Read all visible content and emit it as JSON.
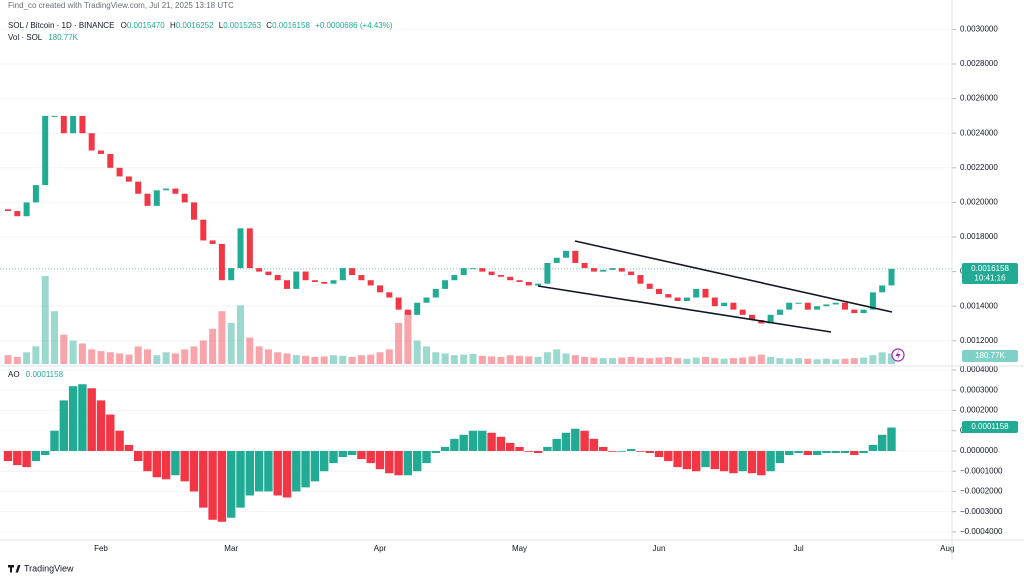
{
  "header": {
    "credit": "Find_co created with TradingView.com, Jul 21, 2025 13:18 UTC",
    "symbol": "SOL / Bitcoin · 1D · BINANCE",
    "ohlc": [
      {
        "label": "O",
        "value": "0.0015470"
      },
      {
        "label": "H",
        "value": "0.0016252"
      },
      {
        "label": "L",
        "value": "0.0015263"
      },
      {
        "label": "C",
        "value": "0.0016158"
      }
    ],
    "change": "+0.0000686 (+4.43%)",
    "vol_name": "Vol · SOL",
    "vol_value": "180.77K"
  },
  "footer": "TradingView",
  "chart_data": [
    {
      "type": "candlestick",
      "up_color": "#22ab94",
      "down_color": "#f23645",
      "categories": [
        null,
        null,
        null,
        null,
        null,
        null,
        null,
        null,
        null,
        null,
        "Feb",
        null,
        null,
        null,
        null,
        null,
        null,
        null,
        null,
        null,
        null,
        null,
        null,
        null,
        "Mar",
        null,
        null,
        null,
        null,
        null,
        null,
        null,
        null,
        null,
        null,
        null,
        null,
        null,
        null,
        null,
        "Apr",
        null,
        null,
        null,
        null,
        null,
        null,
        null,
        null,
        null,
        null,
        null,
        null,
        null,
        null,
        "May",
        null,
        null,
        null,
        null,
        null,
        null,
        null,
        null,
        null,
        null,
        null,
        null,
        null,
        null,
        "Jun",
        null,
        null,
        null,
        null,
        null,
        null,
        null,
        null,
        null,
        null,
        null,
        null,
        null,
        null,
        "Jul",
        null,
        null,
        null,
        null,
        null,
        null,
        null,
        null,
        null,
        null
      ],
      "future_categories": [
        null,
        null,
        null,
        null,
        null,
        "Aug"
      ],
      "open": 0.00196,
      "close": [
        0.00195,
        0.00192,
        0.002,
        0.0021,
        0.0025,
        0.0025,
        0.0024,
        0.0025,
        0.0024,
        0.0023,
        0.00228,
        0.0022,
        0.00215,
        0.00212,
        0.00205,
        0.00198,
        0.00207,
        0.00208,
        0.00205,
        0.002,
        0.0019,
        0.00178,
        0.00176,
        0.00155,
        0.00162,
        0.00185,
        0.00162,
        0.0016,
        0.00158,
        0.00155,
        0.0015,
        0.0016,
        0.00155,
        0.00154,
        0.00153,
        0.00155,
        0.00162,
        0.00158,
        0.00155,
        0.00152,
        0.00148,
        0.00145,
        0.00138,
        0.00135,
        0.00142,
        0.00145,
        0.0015,
        0.00155,
        0.00158,
        0.00162,
        0.00162,
        0.0016,
        0.00158,
        0.00157,
        0.00155,
        0.00154,
        0.00152,
        0.00153,
        0.00165,
        0.00168,
        0.00172,
        0.00165,
        0.00162,
        0.0016,
        0.00161,
        0.00162,
        0.0016,
        0.00158,
        0.00153,
        0.0015,
        0.00147,
        0.00145,
        0.00143,
        0.00145,
        0.0015,
        0.00145,
        0.0014,
        0.00142,
        0.00138,
        0.00135,
        0.00132,
        0.0013,
        0.00135,
        0.00138,
        0.00142,
        0.00142,
        0.00138,
        0.0014,
        0.00141,
        0.00142,
        0.00138,
        0.00136,
        0.00138,
        0.00148,
        0.00152,
        0.0016158
      ],
      "volume": [
        150000,
        120000,
        200000,
        300000,
        1500000,
        900000,
        500000,
        400000,
        350000,
        250000,
        220000,
        200000,
        180000,
        160000,
        300000,
        250000,
        150000,
        200000,
        180000,
        250000,
        300000,
        400000,
        600000,
        900000,
        700000,
        1000000,
        450000,
        300000,
        250000,
        200000,
        180000,
        150000,
        140000,
        120000,
        130000,
        150000,
        140000,
        120000,
        150000,
        160000,
        200000,
        250000,
        700000,
        900000,
        400000,
        300000,
        200000,
        180000,
        150000,
        160000,
        170000,
        140000,
        130000,
        120000,
        150000,
        140000,
        130000,
        120000,
        200000,
        250000,
        180000,
        150000,
        120000,
        110000,
        100000,
        100000,
        110000,
        120000,
        110000,
        100000,
        110000,
        120000,
        100000,
        90000,
        110000,
        120000,
        100000,
        90000,
        100000,
        110000,
        130000,
        160000,
        120000,
        100000,
        90000,
        100000,
        90000,
        80000,
        90000,
        80000,
        90000,
        100000,
        110000,
        150000,
        200000,
        180770
      ],
      "countdown": "10:41:16",
      "ylim": [
        0.00106,
        0.00317
      ],
      "yticks": [
        {
          "value": 0.0012,
          "label": "0.0012000"
        },
        {
          "value": 0.0014,
          "label": "0.0014000"
        },
        {
          "value": 0.0016,
          "label": "0.0016000"
        },
        {
          "value": 0.0018,
          "label": "0.0018000"
        },
        {
          "value": 0.002,
          "label": "0.0020000"
        },
        {
          "value": 0.0022,
          "label": "0.0022000"
        },
        {
          "value": 0.0024,
          "label": "0.0024000"
        },
        {
          "value": 0.0026,
          "label": "0.0026000"
        },
        {
          "value": 0.0028,
          "label": "0.0028000"
        },
        {
          "value": 0.003,
          "label": "0.0030000"
        }
      ]
    },
    {
      "type": "bar",
      "title": "AO",
      "value_label": "0.0001158",
      "up_color": "#22ab94",
      "down_color": "#f23645",
      "values": [
        -5e-05,
        -7e-05,
        -8e-05,
        -5e-05,
        -2e-05,
        0.0001,
        0.00025,
        0.00032,
        0.00033,
        0.00031,
        0.00025,
        0.00018,
        0.0001,
        3e-05,
        -5e-05,
        -0.0001,
        -0.00013,
        -0.00014,
        -0.00012,
        -0.00015,
        -0.0002,
        -0.00028,
        -0.00034,
        -0.00035,
        -0.00033,
        -0.00028,
        -0.00022,
        -0.0002,
        -0.0002,
        -0.00022,
        -0.00023,
        -0.0002,
        -0.00018,
        -0.00015,
        -0.0001,
        -6e-05,
        -3e-05,
        -2e-05,
        -4e-05,
        -6e-05,
        -9e-05,
        -0.00011,
        -0.00012,
        -0.00012,
        -0.0001,
        -6e-05,
        -1e-05,
        2e-05,
        6e-05,
        8e-05,
        0.0001,
        0.0001,
        9e-05,
        7e-05,
        4e-05,
        2e-05,
        0,
        -1e-05,
        2e-05,
        6e-05,
        9e-05,
        0.00011,
        0.0001,
        6e-05,
        2e-05,
        0,
        0,
        1e-05,
        0,
        -1e-05,
        -3e-05,
        -5e-05,
        -8e-05,
        -9e-05,
        -0.0001,
        -8e-05,
        -9e-05,
        -0.0001,
        -0.00011,
        -0.0001,
        -0.00011,
        -0.00012,
        -0.0001,
        -6e-05,
        -2e-05,
        -1e-05,
        -2e-05,
        -2e-05,
        -1e-05,
        -1e-05,
        -1e-05,
        -2e-05,
        -1e-05,
        3e-05,
        8e-05,
        0.0001158
      ],
      "ylim": [
        -0.00044,
        0.00042
      ],
      "yticks": [
        {
          "value": 0.0004,
          "label": "0.0004000"
        },
        {
          "value": 0.0003,
          "label": "0.0003000"
        },
        {
          "value": 0.0002,
          "label": "0.0002000"
        },
        {
          "value": 0.0001,
          "label": "0.0001000"
        },
        {
          "value": 0,
          "label": "0.0000000"
        },
        {
          "value": -0.0001,
          "label": "−0.0001000"
        },
        {
          "value": -0.0002,
          "label": "−0.0002000"
        },
        {
          "value": -0.0003,
          "label": "−0.0003000"
        },
        {
          "value": -0.0004,
          "label": "−0.0004000"
        }
      ]
    }
  ]
}
